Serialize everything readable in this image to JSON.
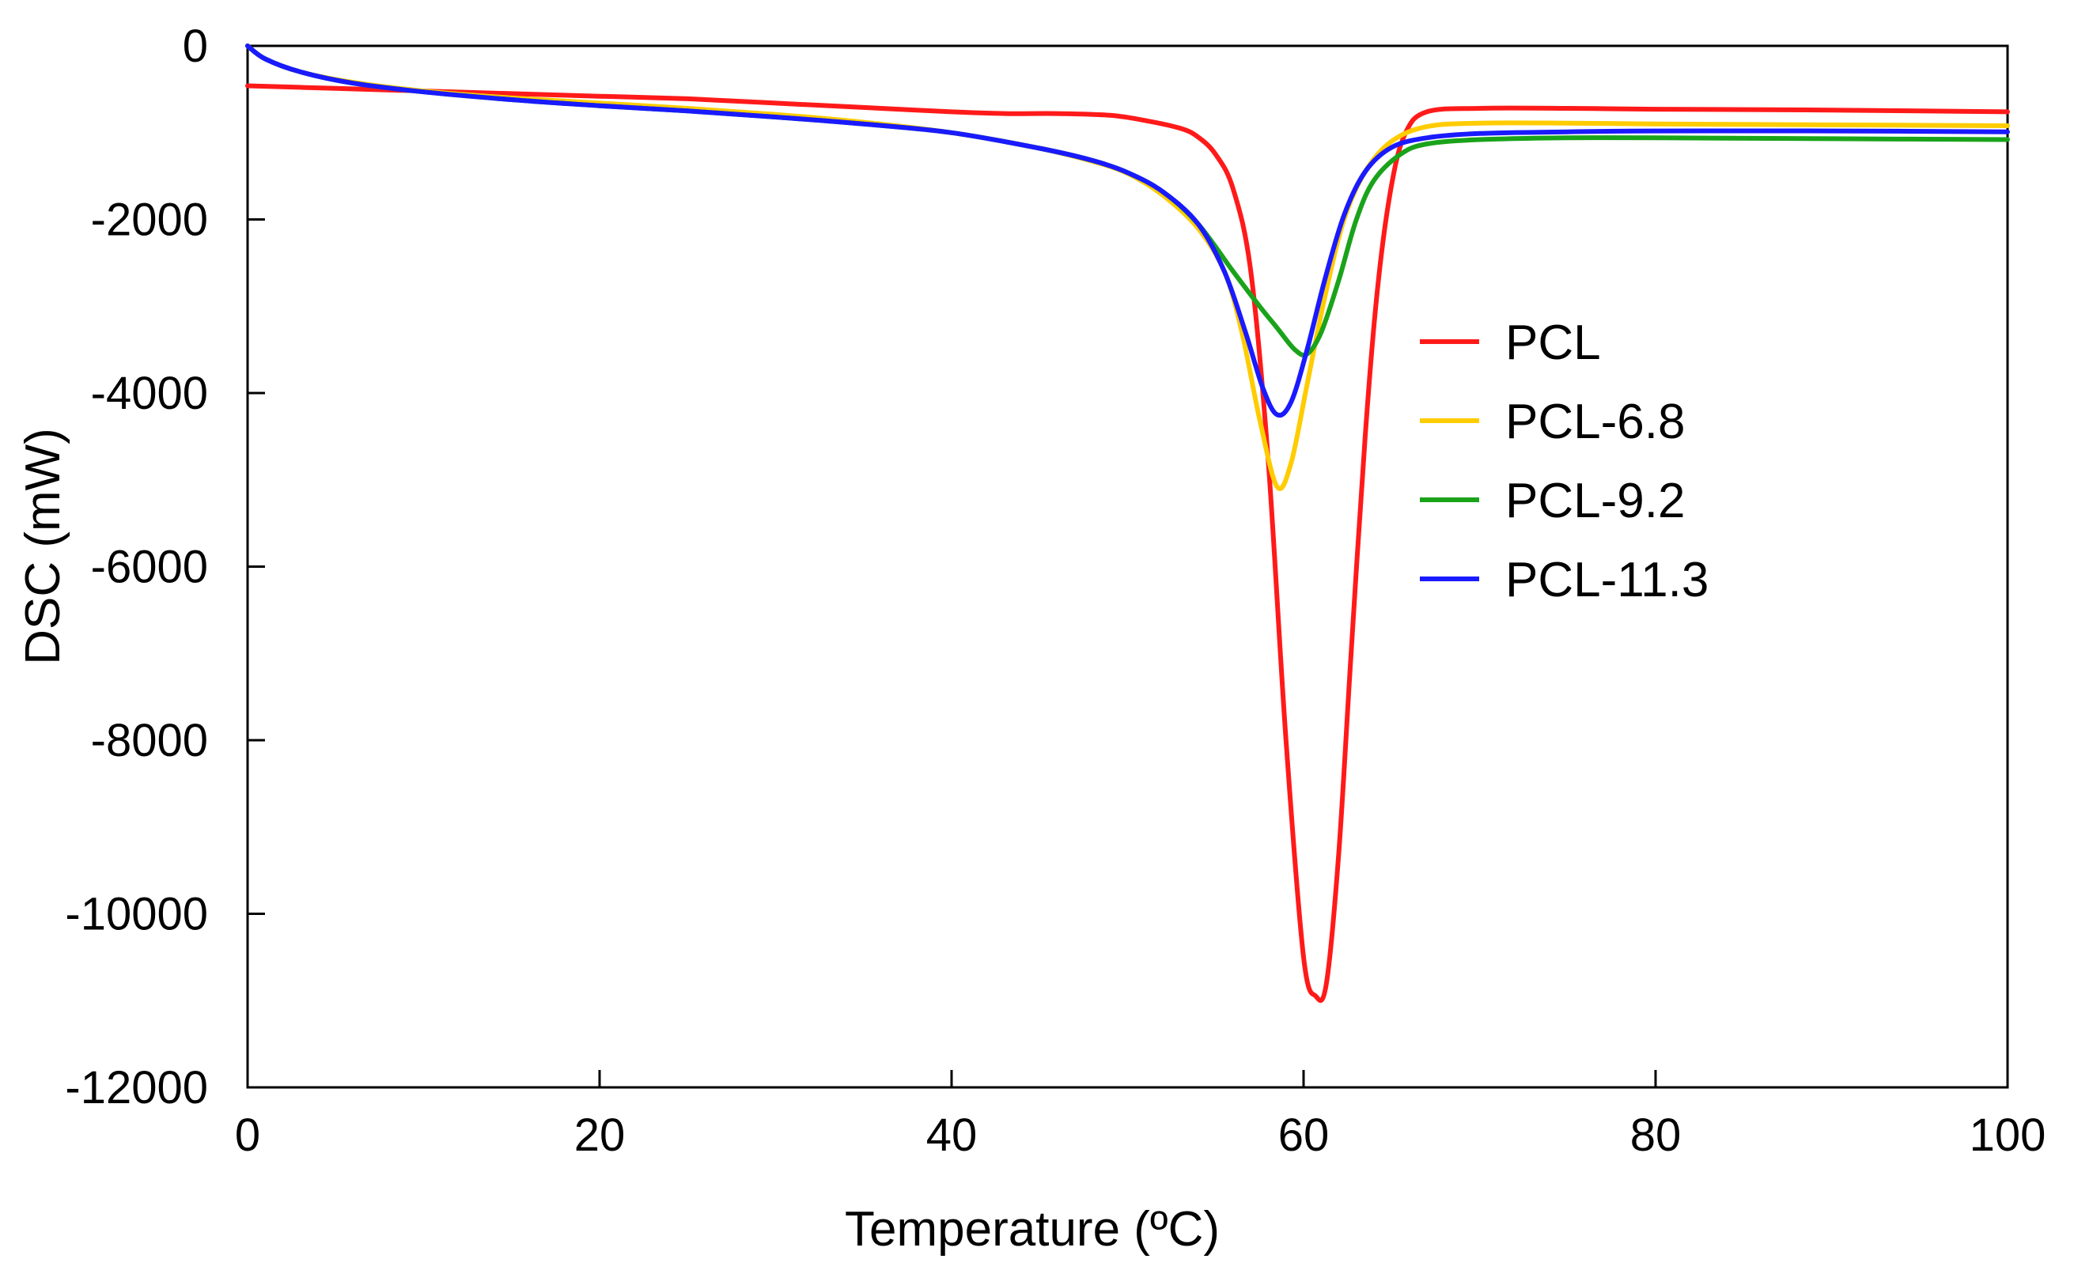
{
  "chart_data": {
    "type": "line",
    "title": "",
    "xlabel": "Temperature (ºC)",
    "ylabel": "DSC (mW)",
    "xlim": [
      0,
      100
    ],
    "ylim": [
      -12000,
      0
    ],
    "xticks": [
      0,
      20,
      40,
      60,
      80,
      100
    ],
    "yticks": [
      0,
      -2000,
      -4000,
      -6000,
      -8000,
      -10000,
      -12000
    ],
    "grid": false,
    "legend_position": "right",
    "series": [
      {
        "name": "PCL",
        "color": "#ff1a1a",
        "points": [
          [
            0,
            -460
          ],
          [
            5,
            -490
          ],
          [
            10,
            -520
          ],
          [
            15,
            -550
          ],
          [
            20,
            -580
          ],
          [
            25,
            -610
          ],
          [
            30,
            -660
          ],
          [
            35,
            -710
          ],
          [
            40,
            -760
          ],
          [
            43,
            -780
          ],
          [
            46,
            -780
          ],
          [
            49,
            -800
          ],
          [
            51,
            -860
          ],
          [
            53,
            -950
          ],
          [
            54,
            -1050
          ],
          [
            55,
            -1250
          ],
          [
            56,
            -1650
          ],
          [
            57,
            -2600
          ],
          [
            58,
            -4800
          ],
          [
            59,
            -8000
          ],
          [
            60,
            -10500
          ],
          [
            60.7,
            -10950
          ],
          [
            61.3,
            -10800
          ],
          [
            62,
            -9300
          ],
          [
            62.7,
            -7000
          ],
          [
            63.5,
            -4500
          ],
          [
            64.2,
            -2800
          ],
          [
            65,
            -1600
          ],
          [
            65.8,
            -1000
          ],
          [
            67,
            -760
          ],
          [
            70,
            -720
          ],
          [
            75,
            -720
          ],
          [
            80,
            -730
          ],
          [
            90,
            -740
          ],
          [
            100,
            -760
          ]
        ]
      },
      {
        "name": "PCL-6.8",
        "color": "#ffcc00",
        "points": [
          [
            0,
            0
          ],
          [
            1,
            -150
          ],
          [
            3,
            -300
          ],
          [
            6,
            -420
          ],
          [
            10,
            -520
          ],
          [
            15,
            -600
          ],
          [
            20,
            -660
          ],
          [
            25,
            -720
          ],
          [
            30,
            -790
          ],
          [
            35,
            -880
          ],
          [
            40,
            -1000
          ],
          [
            45,
            -1180
          ],
          [
            48,
            -1330
          ],
          [
            50,
            -1470
          ],
          [
            52,
            -1720
          ],
          [
            54,
            -2100
          ],
          [
            55.5,
            -2600
          ],
          [
            56.5,
            -3300
          ],
          [
            57.5,
            -4300
          ],
          [
            58.5,
            -5080
          ],
          [
            59.3,
            -4800
          ],
          [
            60.2,
            -3900
          ],
          [
            61.2,
            -2900
          ],
          [
            62.3,
            -2000
          ],
          [
            63.5,
            -1450
          ],
          [
            65,
            -1100
          ],
          [
            67,
            -930
          ],
          [
            70,
            -890
          ],
          [
            75,
            -890
          ],
          [
            80,
            -900
          ],
          [
            90,
            -910
          ],
          [
            100,
            -920
          ]
        ]
      },
      {
        "name": "PCL-9.2",
        "color": "#1aa31a",
        "points": [
          [
            0,
            0
          ],
          [
            1,
            -150
          ],
          [
            3,
            -300
          ],
          [
            6,
            -430
          ],
          [
            10,
            -530
          ],
          [
            15,
            -620
          ],
          [
            20,
            -690
          ],
          [
            25,
            -750
          ],
          [
            30,
            -820
          ],
          [
            35,
            -900
          ],
          [
            40,
            -1000
          ],
          [
            45,
            -1180
          ],
          [
            48,
            -1320
          ],
          [
            50,
            -1460
          ],
          [
            52,
            -1680
          ],
          [
            54,
            -2050
          ],
          [
            56,
            -2600
          ],
          [
            57.5,
            -3000
          ],
          [
            58.5,
            -3250
          ],
          [
            59.5,
            -3500
          ],
          [
            60.2,
            -3550
          ],
          [
            61,
            -3300
          ],
          [
            62,
            -2700
          ],
          [
            63,
            -2000
          ],
          [
            64,
            -1550
          ],
          [
            65.5,
            -1250
          ],
          [
            67,
            -1130
          ],
          [
            70,
            -1080
          ],
          [
            75,
            -1060
          ],
          [
            80,
            -1060
          ],
          [
            90,
            -1070
          ],
          [
            100,
            -1080
          ]
        ]
      },
      {
        "name": "PCL-11.3",
        "color": "#1a1aff",
        "points": [
          [
            0,
            0
          ],
          [
            1,
            -150
          ],
          [
            3,
            -300
          ],
          [
            6,
            -430
          ],
          [
            10,
            -530
          ],
          [
            15,
            -620
          ],
          [
            20,
            -690
          ],
          [
            25,
            -750
          ],
          [
            30,
            -820
          ],
          [
            35,
            -900
          ],
          [
            40,
            -1000
          ],
          [
            45,
            -1180
          ],
          [
            48,
            -1320
          ],
          [
            50,
            -1460
          ],
          [
            52,
            -1680
          ],
          [
            54,
            -2050
          ],
          [
            55.5,
            -2600
          ],
          [
            56.7,
            -3300
          ],
          [
            57.7,
            -3950
          ],
          [
            58.5,
            -4250
          ],
          [
            59.3,
            -4100
          ],
          [
            60.2,
            -3500
          ],
          [
            61.2,
            -2700
          ],
          [
            62.3,
            -1950
          ],
          [
            63.5,
            -1450
          ],
          [
            65,
            -1170
          ],
          [
            67,
            -1060
          ],
          [
            70,
            -1010
          ],
          [
            75,
            -990
          ],
          [
            80,
            -980
          ],
          [
            90,
            -980
          ],
          [
            100,
            -990
          ]
        ]
      }
    ]
  }
}
